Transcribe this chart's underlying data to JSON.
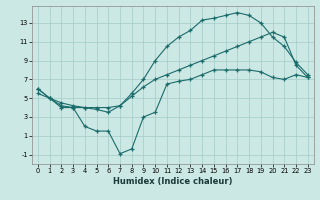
{
  "xlabel": "Humidex (Indice chaleur)",
  "bg_color": "#cce8e4",
  "grid_color": "#aacfcb",
  "line_color": "#1a6b6b",
  "l1x": [
    0,
    1,
    2,
    3,
    4,
    5,
    6,
    7,
    8,
    9,
    10,
    11,
    12,
    13,
    14,
    15,
    16,
    17,
    18,
    19,
    20,
    21,
    22,
    23
  ],
  "l1y": [
    6.0,
    5.0,
    4.2,
    4.0,
    4.0,
    4.0,
    4.0,
    4.2,
    5.5,
    7.0,
    9.0,
    10.5,
    11.5,
    12.2,
    13.3,
    13.5,
    13.8,
    14.1,
    13.8,
    13.0,
    11.5,
    10.5,
    8.8,
    7.5
  ],
  "l2x": [
    0,
    1,
    2,
    3,
    4,
    5,
    6,
    7,
    8,
    9,
    10,
    11,
    12,
    13,
    14,
    15,
    16,
    17,
    18,
    19,
    20,
    21,
    22,
    23
  ],
  "l2y": [
    5.5,
    5.0,
    4.5,
    4.2,
    4.0,
    3.8,
    3.5,
    4.2,
    5.2,
    6.2,
    7.0,
    7.5,
    8.0,
    8.5,
    9.0,
    9.5,
    10.0,
    10.5,
    11.0,
    11.5,
    12.0,
    11.5,
    8.5,
    7.2
  ],
  "l3x": [
    0,
    1,
    2,
    3,
    4,
    5,
    6,
    7,
    8,
    9,
    10,
    11,
    12,
    13,
    14,
    15,
    16,
    17,
    18,
    19,
    20,
    21,
    22,
    23
  ],
  "l3y": [
    6.0,
    5.0,
    4.0,
    4.0,
    2.0,
    1.5,
    1.5,
    -0.9,
    -0.4,
    3.0,
    3.5,
    6.5,
    6.8,
    7.0,
    7.5,
    8.0,
    8.0,
    8.0,
    8.0,
    7.8,
    7.2,
    7.0,
    7.5,
    7.2
  ],
  "xlim": [
    -0.5,
    23.5
  ],
  "ylim": [
    -2.0,
    14.8
  ],
  "yticks": [
    -1,
    1,
    3,
    5,
    7,
    9,
    11,
    13
  ],
  "xticks": [
    0,
    1,
    2,
    3,
    4,
    5,
    6,
    7,
    8,
    9,
    10,
    11,
    12,
    13,
    14,
    15,
    16,
    17,
    18,
    19,
    20,
    21,
    22,
    23
  ],
  "xlabel_fontsize": 6.0,
  "tick_fontsize": 4.8,
  "lw": 0.8,
  "ms": 3.5
}
